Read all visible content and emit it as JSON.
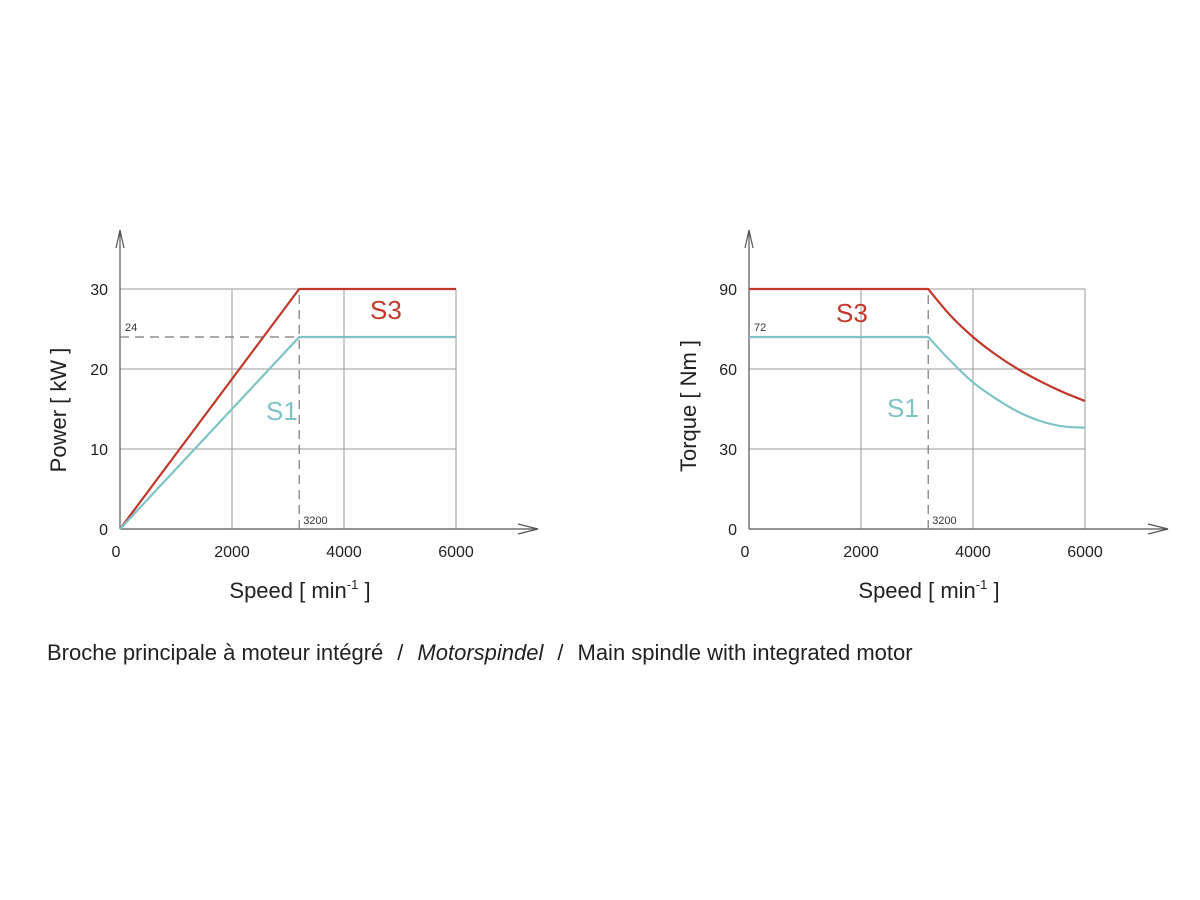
{
  "caption": {
    "part1": "Broche principale à moteur intégré",
    "sep1": "/",
    "part2": "Motorspindel",
    "sep2": "/",
    "part3": "Main spindle with integrated motor"
  },
  "colors": {
    "S3": "#c0392b",
    "S1": "#7fc4c4",
    "grid": "#9a9a9a",
    "axis": "#555555",
    "ref": "#777777"
  },
  "chart_data": [
    {
      "type": "line",
      "xlabel": "Speed",
      "xunit": "[ min",
      "xunit_sup": "-1",
      "xunit_end": " ]",
      "ylabel": "Power  [ kW ]",
      "xlim": [
        0,
        6000
      ],
      "ylim": [
        0,
        30
      ],
      "xticks": [
        0,
        2000,
        4000,
        6000
      ],
      "xtick_labels": [
        "0",
        "2000",
        "4000",
        "6000"
      ],
      "yticks": [
        0,
        10,
        20,
        30
      ],
      "ytick_labels": [
        "0",
        "10",
        "20",
        "30"
      ],
      "grid": true,
      "series": [
        {
          "name": "S3",
          "x": [
            0,
            3200,
            6000
          ],
          "y": [
            0,
            30,
            30
          ]
        },
        {
          "name": "S1",
          "x": [
            0,
            3200,
            6000
          ],
          "y": [
            0,
            24,
            24
          ]
        }
      ],
      "reference": {
        "x": 3200,
        "x_label": "3200",
        "y": 24,
        "y_label": "24"
      }
    },
    {
      "type": "line",
      "xlabel": "Speed",
      "xunit": "[ min",
      "xunit_sup": "-1",
      "xunit_end": " ]",
      "ylabel": "Torque  [ Nm ]",
      "xlim": [
        0,
        6000
      ],
      "ylim": [
        0,
        90
      ],
      "xticks": [
        0,
        2000,
        4000,
        6000
      ],
      "xtick_labels": [
        "0",
        "2000",
        "4000",
        "6000"
      ],
      "yticks": [
        0,
        30,
        60,
        90
      ],
      "ytick_labels": [
        "0",
        "30",
        "60",
        "90"
      ],
      "grid": true,
      "series": [
        {
          "name": "S3",
          "x": [
            0,
            3200,
            3600,
            4000,
            4400,
            4800,
            5200,
            5600,
            6000
          ],
          "y": [
            90,
            90,
            80,
            72,
            65.5,
            60,
            55.4,
            51.4,
            48
          ]
        },
        {
          "name": "S1",
          "x": [
            0,
            3200,
            3600,
            4000,
            4400,
            4800,
            5200,
            5600,
            6000
          ],
          "y": [
            72,
            72,
            63,
            55,
            49,
            44,
            40.5,
            38.5,
            38
          ]
        }
      ],
      "reference": {
        "x": 3200,
        "x_label": "3200",
        "y": 72,
        "y_label": "72"
      }
    }
  ]
}
